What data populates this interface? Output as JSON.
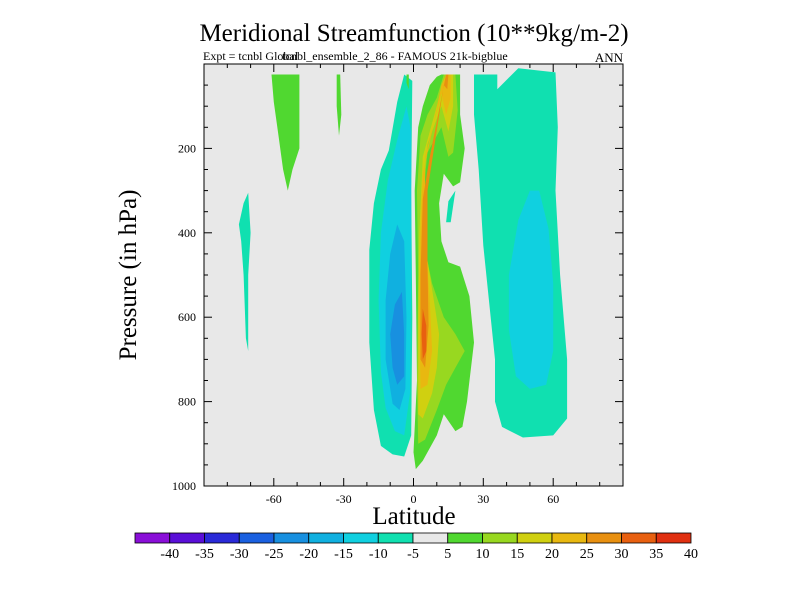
{
  "chart_data": {
    "type": "heatmap",
    "title": "Meridional Streamfunction (10**9kg/m-2)",
    "subtitle_left": "Expt = tcnbl Global",
    "subtitle_center": "tcnbl_ensemble_2_86 - FAMOUS 21k-bigblue",
    "subtitle_right": "ANN",
    "xlabel": "Latitude",
    "ylabel": "Pressure (in hPa)",
    "xlim": [
      -90,
      90
    ],
    "ylim": [
      1000,
      0
    ],
    "x_ticks": [
      {
        "value": -60,
        "label": "-60"
      },
      {
        "value": -30,
        "label": "-30"
      },
      {
        "value": 0,
        "label": "0"
      },
      {
        "value": 30,
        "label": "30"
      },
      {
        "value": 60,
        "label": "60"
      }
    ],
    "y_ticks": [
      {
        "value": 200,
        "label": "200"
      },
      {
        "value": 400,
        "label": "400"
      },
      {
        "value": 600,
        "label": "600"
      },
      {
        "value": 800,
        "label": "800"
      },
      {
        "value": 1000,
        "label": "1000"
      }
    ],
    "background_color": "#e8e8e8",
    "colorbar": {
      "levels": [
        -40,
        -35,
        -30,
        -25,
        -20,
        -15,
        -10,
        -5,
        5,
        10,
        15,
        20,
        25,
        30,
        35,
        40
      ],
      "labels": [
        "-40",
        "-35",
        "-30",
        "-25",
        "-20",
        "-15",
        "-10",
        "-5",
        "5",
        "10",
        "15",
        "20",
        "25",
        "30",
        "35",
        "40"
      ],
      "colors": [
        "#8a0fd8",
        "#5a0fd8",
        "#2a2ad8",
        "#1a60e0",
        "#1890e0",
        "#10b0e0",
        "#10d0e0",
        "#10e0b0",
        "#e8e8e8",
        "#50d830",
        "#98d820",
        "#d0d010",
        "#e8b810",
        "#e89010",
        "#e86010",
        "#e03010"
      ]
    },
    "contour_regions": [
      {
        "name": "sh-subtropical-cell-outer",
        "level": "-10 to -5",
        "color": "#10e0b0",
        "points": [
          [
            -10.6,
            205
          ],
          [
            -7,
            90
          ],
          [
            -4,
            25
          ],
          [
            -0.5,
            40
          ],
          [
            -1,
            300
          ],
          [
            -0.5,
            600
          ],
          [
            -1,
            880
          ],
          [
            -4,
            930
          ],
          [
            -9,
            925
          ],
          [
            -14,
            905
          ],
          [
            -17,
            820
          ],
          [
            -19,
            660
          ],
          [
            -19,
            440
          ],
          [
            -17,
            330
          ],
          [
            -14,
            250
          ]
        ]
      },
      {
        "name": "sh-subtropical-cell-middle",
        "level": "-15 to -10",
        "color": "#10d0e0",
        "points": [
          [
            -7,
            180
          ],
          [
            -3,
            100
          ],
          [
            -1,
            160
          ],
          [
            -1,
            500
          ],
          [
            -1.5,
            780
          ],
          [
            -4,
            880
          ],
          [
            -8,
            870
          ],
          [
            -12,
            815
          ],
          [
            -14,
            730
          ],
          [
            -15,
            560
          ],
          [
            -14,
            400
          ],
          [
            -11,
            275
          ]
        ]
      },
      {
        "name": "sh-subtropical-cell-inner",
        "level": "-20 to -15",
        "color": "#10b0e0",
        "points": [
          [
            -10,
            450
          ],
          [
            -7,
            380
          ],
          [
            -4,
            420
          ],
          [
            -3,
            600
          ],
          [
            -3.5,
            770
          ],
          [
            -6,
            820
          ],
          [
            -9,
            805
          ],
          [
            -12,
            700
          ],
          [
            -12,
            560
          ]
        ]
      },
      {
        "name": "sh-subtropical-cell-core",
        "level": "-25 to -20",
        "color": "#1890e0",
        "points": [
          [
            -8,
            570
          ],
          [
            -5,
            540
          ],
          [
            -4,
            640
          ],
          [
            -4,
            740
          ],
          [
            -7,
            760
          ],
          [
            -9,
            720
          ],
          [
            -10,
            640
          ]
        ]
      },
      {
        "name": "nh-ferrel-cell-outer",
        "level": "-10 to -5",
        "color": "#10e0b0",
        "points": [
          [
            26,
            25
          ],
          [
            36,
            25
          ],
          [
            36,
            60
          ],
          [
            45,
            10
          ],
          [
            61,
            20
          ],
          [
            62,
            150
          ],
          [
            61,
            300
          ],
          [
            63,
            500
          ],
          [
            66,
            700
          ],
          [
            66,
            840
          ],
          [
            60,
            880
          ],
          [
            47,
            885
          ],
          [
            38,
            860
          ],
          [
            35,
            800
          ],
          [
            35,
            700
          ],
          [
            30,
            430
          ],
          [
            28,
            250
          ],
          [
            26,
            120
          ]
        ]
      },
      {
        "name": "nh-ferrel-cell-inner",
        "level": "-15 to -10",
        "color": "#10d0e0",
        "points": [
          [
            54,
            300
          ],
          [
            58,
            390
          ],
          [
            60,
            520
          ],
          [
            60,
            680
          ],
          [
            57,
            760
          ],
          [
            50,
            770
          ],
          [
            44,
            740
          ],
          [
            41,
            630
          ],
          [
            41,
            500
          ],
          [
            45,
            370
          ],
          [
            50,
            300
          ]
        ]
      },
      {
        "name": "nh-eddy-minimum-cell",
        "level": "-10 to -5",
        "color": "#10e0b0",
        "points": [
          [
            14,
            375
          ],
          [
            15,
            325
          ],
          [
            18,
            300
          ],
          [
            16,
            375
          ]
        ]
      },
      {
        "name": "sh-isolated-cell",
        "level": "-10 to -5",
        "color": "#10e0b0",
        "points": [
          [
            -75,
            380
          ],
          [
            -73,
            330
          ],
          [
            -71,
            305
          ],
          [
            -70,
            400
          ],
          [
            -71,
            500
          ],
          [
            -71,
            680
          ],
          [
            -72,
            650
          ],
          [
            -73,
            500
          ],
          [
            -74,
            420
          ]
        ]
      },
      {
        "name": "sh-polar-positive-tongue",
        "level": "5 to 10",
        "color": "#50d830",
        "points": [
          [
            -61,
            25
          ],
          [
            -49,
            25
          ],
          [
            -49,
            200
          ],
          [
            -52,
            250
          ],
          [
            -54,
            300
          ],
          [
            -56,
            250
          ],
          [
            -58,
            170
          ],
          [
            -60,
            90
          ]
        ]
      },
      {
        "name": "sh-positive-sliver",
        "level": "5 to 10",
        "color": "#50d830",
        "points": [
          [
            -33,
            25
          ],
          [
            -31.5,
            25
          ],
          [
            -31,
            120
          ],
          [
            -32,
            170
          ],
          [
            -33,
            100
          ]
        ]
      },
      {
        "name": "equatorial-positive-sliver",
        "level": "5 to 10",
        "color": "#50d830",
        "points": [
          [
            -3,
            25
          ],
          [
            -2,
            25
          ],
          [
            -2,
            60
          ],
          [
            -3,
            45
          ]
        ]
      },
      {
        "name": "hadley-cell-outer",
        "level": "5 to 10",
        "color": "#50d830",
        "points": [
          [
            12,
            25
          ],
          [
            20,
            25
          ],
          [
            20,
            120
          ],
          [
            22,
            200
          ],
          [
            20,
            280
          ],
          [
            17,
            290
          ],
          [
            13,
            260
          ],
          [
            11,
            330
          ],
          [
            12,
            420
          ],
          [
            15,
            470
          ],
          [
            20,
            480
          ],
          [
            24,
            550
          ],
          [
            26,
            660
          ],
          [
            23,
            800
          ],
          [
            21,
            860
          ],
          [
            18,
            870
          ],
          [
            13,
            830
          ],
          [
            10,
            880
          ],
          [
            4,
            940
          ],
          [
            1,
            960
          ],
          [
            0,
            920
          ],
          [
            1.5,
            750
          ],
          [
            1,
            500
          ],
          [
            0.5,
            300
          ],
          [
            2,
            150
          ],
          [
            4,
            100
          ],
          [
            7,
            50
          ],
          [
            10,
            30
          ]
        ]
      },
      {
        "name": "hadley-cell-10-15",
        "level": "10 to 15",
        "color": "#98d820",
        "points": [
          [
            13,
            25
          ],
          [
            18,
            25
          ],
          [
            19,
            110
          ],
          [
            17,
            210
          ],
          [
            15,
            220
          ],
          [
            12,
            150
          ],
          [
            6,
            210
          ],
          [
            4,
            320
          ],
          [
            5,
            440
          ],
          [
            8,
            520
          ],
          [
            13,
            600
          ],
          [
            18,
            640
          ],
          [
            22,
            680
          ],
          [
            18,
            720
          ],
          [
            14,
            760
          ],
          [
            10,
            820
          ],
          [
            5,
            890
          ],
          [
            2,
            900
          ],
          [
            1.5,
            750
          ],
          [
            2,
            500
          ],
          [
            1.5,
            300
          ],
          [
            3,
            170
          ],
          [
            6,
            120
          ],
          [
            10,
            80
          ]
        ]
      },
      {
        "name": "hadley-cell-15-20",
        "level": "15 to 20",
        "color": "#d0d010",
        "points": [
          [
            14,
            25
          ],
          [
            17,
            25
          ],
          [
            17,
            100
          ],
          [
            15,
            160
          ],
          [
            12,
            100
          ],
          [
            6,
            190
          ],
          [
            4,
            300
          ],
          [
            5,
            430
          ],
          [
            9,
            570
          ],
          [
            11,
            640
          ],
          [
            10,
            720
          ],
          [
            8,
            780
          ],
          [
            4,
            840
          ],
          [
            2,
            830
          ],
          [
            2,
            600
          ],
          [
            2.5,
            400
          ],
          [
            4,
            220
          ],
          [
            8,
            140
          ],
          [
            12,
            60
          ]
        ]
      },
      {
        "name": "hadley-cell-20-25",
        "level": "20 to 25",
        "color": "#e8b810",
        "points": [
          [
            14,
            25
          ],
          [
            16,
            25
          ],
          [
            16,
            80
          ],
          [
            14,
            120
          ],
          [
            12,
            70
          ],
          [
            5,
            220
          ],
          [
            5,
            400
          ],
          [
            7,
            560
          ],
          [
            8,
            680
          ],
          [
            6,
            760
          ],
          [
            3,
            770
          ],
          [
            2.5,
            600
          ],
          [
            3,
            400
          ],
          [
            4,
            260
          ],
          [
            8,
            160
          ],
          [
            12,
            50
          ]
        ]
      },
      {
        "name": "hadley-cell-25-30",
        "level": "25 to 30",
        "color": "#e89010",
        "points": [
          [
            14,
            25
          ],
          [
            15,
            25
          ],
          [
            14.5,
            60
          ],
          [
            13,
            50
          ],
          [
            6,
            300
          ],
          [
            6,
            480
          ],
          [
            6.5,
            620
          ],
          [
            5,
            720
          ],
          [
            3,
            700
          ],
          [
            3,
            500
          ],
          [
            4,
            320
          ],
          [
            7,
            220
          ]
        ]
      },
      {
        "name": "hadley-cell-30-35",
        "level": "30 to 35",
        "color": "#e86010",
        "points": [
          [
            4,
            580
          ],
          [
            5.5,
            620
          ],
          [
            5.5,
            680
          ],
          [
            4,
            700
          ],
          [
            3.5,
            640
          ]
        ]
      }
    ]
  }
}
